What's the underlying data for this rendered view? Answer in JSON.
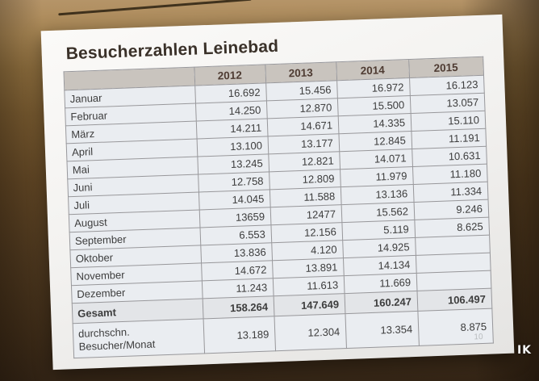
{
  "photo": {
    "watermark": "IK"
  },
  "slide": {
    "title": "Besucherzahlen Leinebad",
    "page_number": "10",
    "table": {
      "corner_label": "",
      "year_headers": [
        "2012",
        "2013",
        "2014",
        "2015"
      ],
      "month_rows": [
        {
          "label": "Januar",
          "values": [
            "16.692",
            "15.456",
            "16.972",
            "16.123"
          ]
        },
        {
          "label": "Februar",
          "values": [
            "14.250",
            "12.870",
            "15.500",
            "13.057"
          ]
        },
        {
          "label": "März",
          "values": [
            "14.211",
            "14.671",
            "14.335",
            "15.110"
          ]
        },
        {
          "label": "April",
          "values": [
            "13.100",
            "13.177",
            "12.845",
            "11.191"
          ]
        },
        {
          "label": "Mai",
          "values": [
            "13.245",
            "12.821",
            "14.071",
            "10.631"
          ]
        },
        {
          "label": "Juni",
          "values": [
            "12.758",
            "12.809",
            "11.979",
            "11.180"
          ]
        },
        {
          "label": "Juli",
          "values": [
            "14.045",
            "11.588",
            "13.136",
            "11.334"
          ]
        },
        {
          "label": "August",
          "values": [
            "13659",
            "12477",
            "15.562",
            "9.246"
          ]
        },
        {
          "label": "September",
          "values": [
            "6.553",
            "12.156",
            "5.119",
            "8.625"
          ]
        },
        {
          "label": "Oktober",
          "values": [
            "13.836",
            "4.120",
            "14.925",
            ""
          ]
        },
        {
          "label": "November",
          "values": [
            "14.672",
            "13.891",
            "14.134",
            ""
          ]
        },
        {
          "label": "Dezember",
          "values": [
            "11.243",
            "11.613",
            "11.669",
            ""
          ]
        }
      ],
      "total_row": {
        "label": "Gesamt",
        "values": [
          "158.264",
          "147.649",
          "160.247",
          "106.497"
        ]
      },
      "average_row": {
        "label_line1": "durchschn.",
        "label_line2": "Besucher/Monat",
        "values": [
          "13.189",
          "12.304",
          "13.354",
          "8.875"
        ]
      }
    }
  },
  "colors": {
    "title_text": "#3a3129",
    "year_header_text": "#4e3b32",
    "header_bg": "#c9c4be",
    "cell_bg": "#eaedf1",
    "cell_border": "#97979b",
    "slide_bg": "#f3f2f0",
    "photo_wall_tan": "#a98754",
    "photo_dark_brown": "#3f2d19",
    "watermark_text": "#f5f5f5"
  },
  "chart_data": {
    "type": "table",
    "title": "Besucherzahlen Leinebad",
    "columns": [
      "",
      "2012",
      "2013",
      "2014",
      "2015"
    ],
    "rows": [
      [
        "Januar",
        "16.692",
        "15.456",
        "16.972",
        "16.123"
      ],
      [
        "Februar",
        "14.250",
        "12.870",
        "15.500",
        "13.057"
      ],
      [
        "März",
        "14.211",
        "14.671",
        "14.335",
        "15.110"
      ],
      [
        "April",
        "13.100",
        "13.177",
        "12.845",
        "11.191"
      ],
      [
        "Mai",
        "13.245",
        "12.821",
        "14.071",
        "10.631"
      ],
      [
        "Juni",
        "12.758",
        "12.809",
        "11.979",
        "11.180"
      ],
      [
        "Juli",
        "14.045",
        "11.588",
        "13.136",
        "11.334"
      ],
      [
        "August",
        "13659",
        "12477",
        "15.562",
        "9.246"
      ],
      [
        "September",
        "6.553",
        "12.156",
        "5.119",
        "8.625"
      ],
      [
        "Oktober",
        "13.836",
        "4.120",
        "14.925",
        ""
      ],
      [
        "November",
        "14.672",
        "13.891",
        "14.134",
        ""
      ],
      [
        "Dezember",
        "11.243",
        "11.613",
        "11.669",
        ""
      ],
      [
        "Gesamt",
        "158.264",
        "147.649",
        "160.247",
        "106.497"
      ],
      [
        "durchschn. Besucher/Monat",
        "13.189",
        "12.304",
        "13.354",
        "8.875"
      ]
    ]
  }
}
